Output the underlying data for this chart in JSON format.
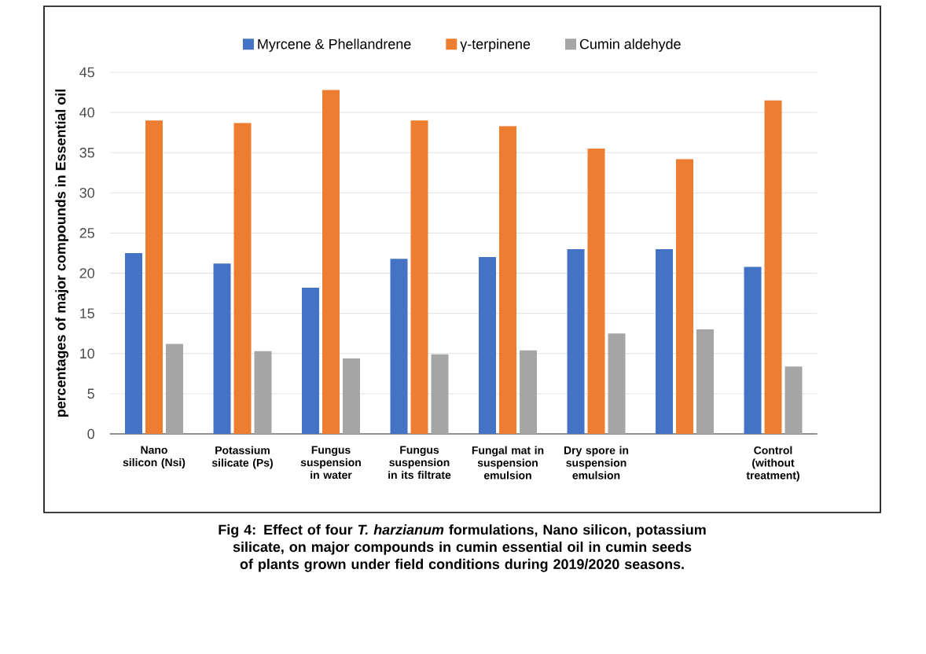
{
  "chart_data": {
    "type": "bar",
    "title": "Fig 4: Effect of four *T. harzianum* formulations, Nano silicon, potassium silicate, on major compounds in cumin essential oil in cumin seeds of plants grown under field conditions during 2019/2020 seasons.",
    "ylabel": "percentages of major compounds in Essential oil",
    "categories": [
      "Nano silicon (Nsi)",
      "Potassium silicate (Ps)",
      "Fungus suspension in water",
      "Fungus suspension in its filtrate",
      "Fungal mat in suspension emulsion",
      "Dry spore in suspension emulsion",
      null,
      "Control (without treatment)"
    ],
    "series": [
      {
        "name": "Myrcene & Phellandrene",
        "color": "#4472c4",
        "values": [
          22.5,
          21.2,
          18.2,
          21.8,
          22.0,
          23.0,
          23.0,
          20.8
        ]
      },
      {
        "name": "γ-terpinene",
        "color": "#ed7d31",
        "values": [
          39.0,
          38.7,
          42.8,
          39.0,
          38.3,
          35.5,
          34.2,
          41.5
        ]
      },
      {
        "name": "Cumin aldehyde",
        "color": "#a5a5a5",
        "values": [
          11.2,
          10.3,
          9.4,
          9.9,
          10.4,
          12.5,
          13.0,
          8.4
        ]
      }
    ],
    "ylim": [
      0,
      45
    ],
    "yticks": [
      0,
      5,
      10,
      15,
      20,
      25,
      30,
      35,
      40,
      45
    ],
    "grid": "y",
    "legend": "top"
  }
}
